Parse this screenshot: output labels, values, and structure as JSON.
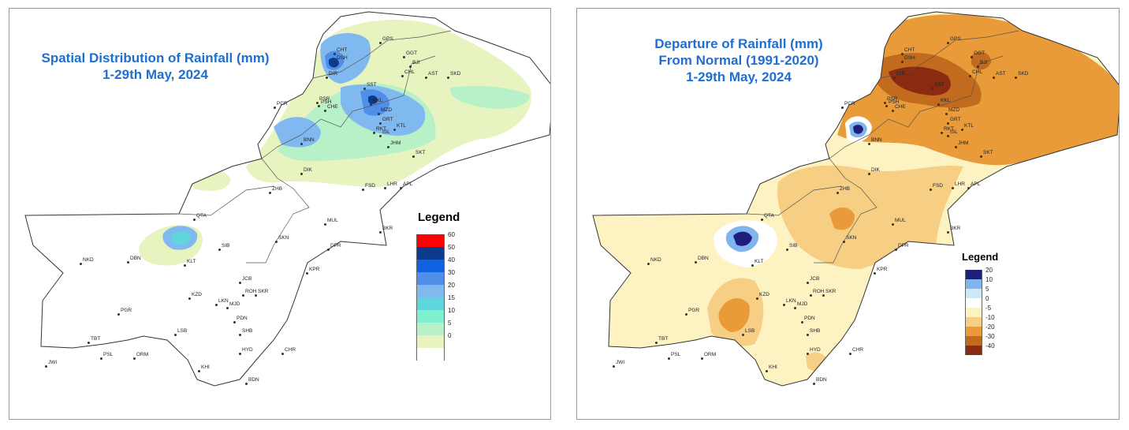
{
  "maps": [
    {
      "id": "left",
      "title_lines": [
        "Spatial Distribution of Rainfall (mm)",
        "1-29th May, 2024"
      ],
      "legend": {
        "title": "Legend",
        "classes": [
          {
            "label": "60",
            "color": "#ff0000"
          },
          {
            "label": "50",
            "color": "#0a3b8f"
          },
          {
            "label": "40",
            "color": "#0f62e0"
          },
          {
            "label": "30",
            "color": "#4f8fe8"
          },
          {
            "label": "20",
            "color": "#80b8f0"
          },
          {
            "label": "15",
            "color": "#5fd6dc"
          },
          {
            "label": "10",
            "color": "#7ff0d0"
          },
          {
            "label": "5",
            "color": "#b8f0c8"
          },
          {
            "label": "0",
            "color": "#e8f4c0"
          },
          {
            "label": "",
            "color": "#ffffff"
          }
        ]
      }
    },
    {
      "id": "right",
      "title_lines": [
        "Departure of Rainfall (mm)",
        "From Normal (1991-2020)",
        "1-29th May, 2024"
      ],
      "legend": {
        "title": "Legend",
        "classes": [
          {
            "label": "20",
            "color": "#1d1f7a"
          },
          {
            "label": "10",
            "color": "#7fb4ee"
          },
          {
            "label": "5",
            "color": "#cde9f6"
          },
          {
            "label": "0",
            "color": "#ffffff"
          },
          {
            "label": "-5",
            "color": "#fdf3c2"
          },
          {
            "label": "-10",
            "color": "#f6cf84"
          },
          {
            "label": "-20",
            "color": "#e99a39"
          },
          {
            "label": "-30",
            "color": "#c26a1d"
          },
          {
            "label": "-40",
            "color": "#8a2a10"
          }
        ]
      }
    }
  ],
  "stations": [
    "GPS",
    "GGT",
    "BJI",
    "CHT",
    "DSH",
    "CHL",
    "AST",
    "SKD",
    "DIR",
    "SST",
    "KKL",
    "PSR",
    "MZD",
    "CHE",
    "PSH",
    "GRT",
    "KTL",
    "RKT",
    "ISL",
    "PCR",
    "JHM",
    "BNN",
    "SKT",
    "DIK",
    "ZHB",
    "FSD",
    "LHR",
    "APL",
    "QTA",
    "MUL",
    "BKR",
    "SIB",
    "SKN",
    "DPR",
    "NKD",
    "DBN",
    "KLT",
    "KPR",
    "JCB",
    "KZD",
    "ROH",
    "SKR",
    "LKN",
    "MJD",
    "PGR",
    "PDN",
    "LSB",
    "SHB",
    "TBT",
    "HYD",
    "PSL",
    "ORM",
    "CHR",
    "JWI",
    "KHI",
    "BDN"
  ]
}
